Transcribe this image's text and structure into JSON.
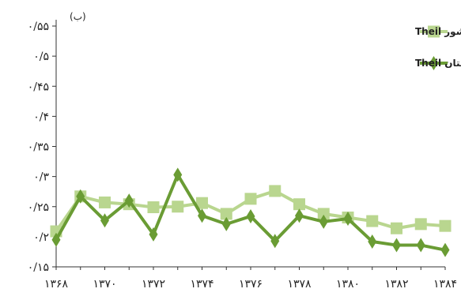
{
  "panel_label": "(ب)",
  "chart_data": {
    "type": "line",
    "x": [
      1368,
      1369,
      1370,
      1371,
      1372,
      1373,
      1374,
      1375,
      1376,
      1377,
      1378,
      1379,
      1380,
      1381,
      1382,
      1383,
      1384
    ],
    "x_tick_labels": [
      "۱۳۶۸",
      "۱۳۷۰",
      "۱۳۷۲",
      "۱۳۷۴",
      "۱۳۷۶",
      "۱۳۷۸",
      "۱۳۸۰",
      "۱۳۸۲",
      "۱۳۸۴"
    ],
    "x_ticks": [
      1368,
      1370,
      1372,
      1374,
      1376,
      1378,
      1380,
      1382,
      1384
    ],
    "y_tick_labels": [
      "۰/۱۵",
      "۰/۲",
      "۰/۲۵",
      "۰/۳",
      "۰/۳۵",
      "۰/۴",
      "۰/۴۵",
      "۰/۵",
      "۰/۵۵"
    ],
    "y_ticks": [
      0.15,
      0.2,
      0.25,
      0.3,
      0.35,
      0.4,
      0.45,
      0.5,
      0.55
    ],
    "ylim": [
      0.15,
      0.55
    ],
    "grid": false,
    "legend_position": "top-right",
    "series": [
      {
        "name": "کشور Theil",
        "marker": "square",
        "color": "#b9d68f",
        "values": [
          0.209,
          0.267,
          0.257,
          0.254,
          0.249,
          0.25,
          0.256,
          0.238,
          0.263,
          0.276,
          0.254,
          0.238,
          0.232,
          0.226,
          0.214,
          0.221,
          0.218
        ]
      },
      {
        "name": "استان Theil",
        "marker": "diamond",
        "color": "#6a9c34",
        "values": [
          0.195,
          0.267,
          0.227,
          0.26,
          0.204,
          0.303,
          0.235,
          0.221,
          0.234,
          0.193,
          0.235,
          0.225,
          0.23,
          0.192,
          0.186,
          0.186,
          0.178
        ]
      }
    ]
  }
}
